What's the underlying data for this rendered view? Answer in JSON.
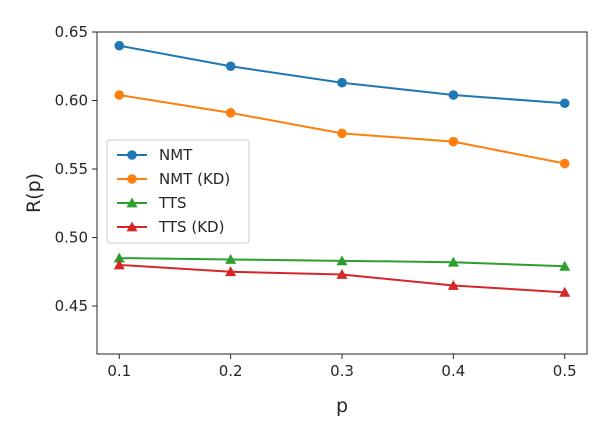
{
  "chart_data": {
    "type": "line",
    "title": "",
    "xlabel": "p",
    "ylabel": "R(p)",
    "x": [
      0.1,
      0.2,
      0.3,
      0.4,
      0.5
    ],
    "xticks": [
      "0.1",
      "0.2",
      "0.3",
      "0.4",
      "0.5"
    ],
    "yticks": [
      "0.45",
      "0.50",
      "0.55",
      "0.60",
      "0.65"
    ],
    "xlim": [
      0.08,
      0.52
    ],
    "ylim": [
      0.415,
      0.65
    ],
    "grid": false,
    "legend_position": "center-left",
    "series": [
      {
        "name": "NMT",
        "marker": "circle",
        "color": "#1f77b4",
        "values": [
          0.64,
          0.625,
          0.613,
          0.604,
          0.598
        ]
      },
      {
        "name": "NMT (KD)",
        "marker": "circle",
        "color": "#ff7f0e",
        "values": [
          0.604,
          0.591,
          0.576,
          0.57,
          0.554
        ]
      },
      {
        "name": "TTS",
        "marker": "triangle",
        "color": "#2ca02c",
        "values": [
          0.485,
          0.484,
          0.483,
          0.482,
          0.479
        ]
      },
      {
        "name": "TTS (KD)",
        "marker": "triangle",
        "color": "#d62728",
        "values": [
          0.48,
          0.475,
          0.473,
          0.465,
          0.46
        ]
      }
    ]
  }
}
